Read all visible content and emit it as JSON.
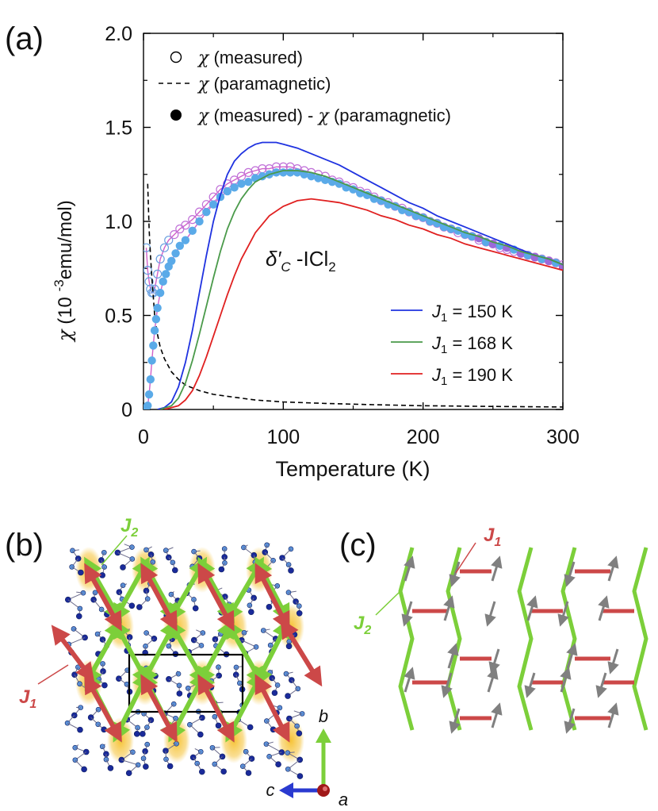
{
  "panel_a": {
    "label": "(a)",
    "annotation": {
      "symbol": "δ′",
      "sub": "C",
      "mid": " -ICl",
      "sub2": "2"
    },
    "legend_top": [
      {
        "marker": "open-circle",
        "sym": "χ",
        "text": " (measured)"
      },
      {
        "marker": "dashed-line",
        "sym": "χ",
        "text": " (paramagnetic)"
      },
      {
        "marker": "filled-circle",
        "sym": "χ",
        "text": " (measured) - ",
        "sym2": "χ",
        "text2": " (paramagnetic)"
      }
    ],
    "legend_models": [
      {
        "sym": "J",
        "sub": "1",
        "text": " = 150 K",
        "color": "#1f32e0"
      },
      {
        "sym": "J",
        "sub": "1",
        "text": " = 168 K",
        "color": "#4a9a4a"
      },
      {
        "sym": "J",
        "sub": "1",
        "text": " = 190 K",
        "color": "#e02020"
      }
    ],
    "ylabel_sym": "χ",
    "ylabel_text": " (10 ",
    "ylabel_sup": "-3",
    "ylabel_unit": "emu/mol)",
    "xlabel": "Temperature (K)"
  },
  "chart_data": {
    "type": "scatter",
    "xlim": [
      0,
      300
    ],
    "ylim": [
      0,
      2.0
    ],
    "xticks": [
      "0",
      "100",
      "200",
      "300"
    ],
    "yticks": [
      "0",
      "0.5",
      "1.0",
      "1.5",
      "2.0"
    ],
    "grid": false,
    "legend": "top-left",
    "series": [
      {
        "name": "χ (measured)",
        "style": "open-circle",
        "color": "#c060d0",
        "x": [
          2,
          3,
          4,
          5,
          6,
          7,
          8,
          10,
          12,
          15,
          18,
          22,
          26,
          30,
          35,
          40,
          45,
          50,
          55,
          60,
          65,
          70,
          75,
          80,
          85,
          90,
          95,
          100,
          105,
          110,
          115,
          120,
          125,
          130,
          135,
          140,
          145,
          150,
          155,
          160,
          165,
          170,
          175,
          180,
          185,
          190,
          195,
          200,
          205,
          210,
          215,
          220,
          225,
          230,
          235,
          240,
          245,
          250,
          255,
          260,
          265,
          270,
          275,
          280,
          285,
          290,
          295,
          300
        ],
        "y": [
          0.86,
          0.74,
          0.68,
          0.64,
          0.62,
          0.62,
          0.64,
          0.72,
          0.8,
          0.86,
          0.9,
          0.93,
          0.96,
          0.98,
          1.01,
          1.05,
          1.09,
          1.13,
          1.17,
          1.2,
          1.22,
          1.24,
          1.26,
          1.27,
          1.28,
          1.28,
          1.29,
          1.29,
          1.29,
          1.28,
          1.27,
          1.26,
          1.25,
          1.24,
          1.22,
          1.21,
          1.19,
          1.18,
          1.16,
          1.15,
          1.13,
          1.11,
          1.1,
          1.08,
          1.07,
          1.05,
          1.03,
          1.02,
          1.0,
          0.99,
          0.97,
          0.96,
          0.94,
          0.93,
          0.92,
          0.9,
          0.89,
          0.88,
          0.86,
          0.85,
          0.84,
          0.83,
          0.82,
          0.81,
          0.8,
          0.79,
          0.78,
          0.77
        ]
      },
      {
        "name": "χ (paramagnetic)",
        "style": "dashed-line",
        "color": "#000000",
        "x": [
          3,
          4,
          5,
          6,
          8,
          10,
          12,
          15,
          20,
          25,
          30,
          40,
          50,
          60,
          80,
          100,
          130,
          160,
          200,
          250,
          300
        ],
        "y": [
          1.2,
          0.96,
          0.82,
          0.7,
          0.5,
          0.4,
          0.33,
          0.27,
          0.2,
          0.16,
          0.13,
          0.1,
          0.08,
          0.07,
          0.05,
          0.04,
          0.032,
          0.026,
          0.02,
          0.016,
          0.013
        ]
      },
      {
        "name": "χ (measured) - χ (paramagnetic)",
        "style": "filled-circle",
        "color": "#5aaae8",
        "x": [
          2,
          3,
          4,
          5,
          6,
          7,
          8,
          9,
          10,
          12,
          14,
          16,
          18,
          20,
          23,
          26,
          30,
          35,
          40,
          45,
          50,
          55,
          60,
          65,
          70,
          75,
          80,
          85,
          90,
          95,
          100,
          105,
          110,
          115,
          120,
          125,
          130,
          135,
          140,
          145,
          150,
          155,
          160,
          165,
          170,
          175,
          180,
          185,
          190,
          195,
          200,
          205,
          210,
          215,
          220,
          225,
          230,
          235,
          240,
          245,
          250,
          255,
          260,
          265,
          270,
          275,
          280,
          285,
          290,
          295,
          300
        ],
        "y": [
          0.01,
          0.02,
          0.08,
          0.16,
          0.26,
          0.34,
          0.42,
          0.48,
          0.54,
          0.62,
          0.68,
          0.72,
          0.76,
          0.79,
          0.83,
          0.87,
          0.9,
          0.95,
          1.0,
          1.05,
          1.09,
          1.13,
          1.16,
          1.18,
          1.2,
          1.21,
          1.23,
          1.24,
          1.25,
          1.26,
          1.26,
          1.26,
          1.26,
          1.25,
          1.24,
          1.23,
          1.22,
          1.21,
          1.2,
          1.18,
          1.17,
          1.15,
          1.14,
          1.12,
          1.11,
          1.09,
          1.08,
          1.06,
          1.05,
          1.03,
          1.02,
          1.0,
          0.99,
          0.97,
          0.96,
          0.95,
          0.93,
          0.92,
          0.91,
          0.89,
          0.88,
          0.87,
          0.86,
          0.85,
          0.83,
          0.82,
          0.81,
          0.8,
          0.79,
          0.78,
          0.76
        ]
      },
      {
        "name": "J1 = 150 K",
        "style": "line",
        "color": "#1f32e0",
        "x": [
          10,
          15,
          20,
          25,
          30,
          35,
          40,
          45,
          50,
          55,
          60,
          65,
          70,
          75,
          80,
          85,
          90,
          95,
          100,
          110,
          120,
          130,
          140,
          150,
          160,
          170,
          180,
          190,
          200,
          210,
          220,
          230,
          240,
          250,
          260,
          270,
          280,
          290,
          300
        ],
        "y": [
          0.0,
          0.01,
          0.04,
          0.12,
          0.25,
          0.42,
          0.62,
          0.82,
          1.0,
          1.14,
          1.25,
          1.32,
          1.36,
          1.39,
          1.41,
          1.42,
          1.42,
          1.42,
          1.41,
          1.39,
          1.36,
          1.33,
          1.3,
          1.26,
          1.22,
          1.18,
          1.14,
          1.1,
          1.07,
          1.03,
          1.0,
          0.97,
          0.94,
          0.91,
          0.88,
          0.85,
          0.82,
          0.8,
          0.77
        ]
      },
      {
        "name": "J1 = 168 K",
        "style": "line",
        "color": "#4a9a4a",
        "x": [
          12,
          20,
          25,
          30,
          35,
          40,
          45,
          50,
          55,
          60,
          65,
          70,
          75,
          80,
          85,
          90,
          95,
          100,
          110,
          120,
          130,
          140,
          150,
          160,
          170,
          180,
          190,
          200,
          210,
          220,
          230,
          240,
          250,
          260,
          270,
          280,
          290,
          300
        ],
        "y": [
          0.0,
          0.02,
          0.06,
          0.14,
          0.26,
          0.4,
          0.55,
          0.7,
          0.84,
          0.96,
          1.05,
          1.12,
          1.17,
          1.21,
          1.23,
          1.25,
          1.26,
          1.27,
          1.27,
          1.26,
          1.24,
          1.21,
          1.18,
          1.15,
          1.12,
          1.09,
          1.06,
          1.03,
          1.0,
          0.97,
          0.94,
          0.92,
          0.89,
          0.87,
          0.84,
          0.82,
          0.8,
          0.77
        ]
      },
      {
        "name": "J1 = 190 K",
        "style": "line",
        "color": "#e02020",
        "x": [
          15,
          25,
          30,
          35,
          40,
          45,
          50,
          55,
          60,
          65,
          70,
          75,
          80,
          90,
          100,
          110,
          120,
          130,
          140,
          150,
          160,
          170,
          180,
          190,
          200,
          210,
          220,
          230,
          240,
          250,
          260,
          270,
          280,
          290,
          300
        ],
        "y": [
          0.0,
          0.02,
          0.05,
          0.1,
          0.18,
          0.28,
          0.39,
          0.5,
          0.61,
          0.71,
          0.8,
          0.87,
          0.94,
          1.03,
          1.08,
          1.11,
          1.12,
          1.11,
          1.1,
          1.08,
          1.06,
          1.03,
          1.01,
          0.98,
          0.96,
          0.93,
          0.91,
          0.88,
          0.86,
          0.84,
          0.82,
          0.8,
          0.78,
          0.76,
          0.74
        ]
      }
    ]
  },
  "panel_b": {
    "label": "(b)",
    "j1": {
      "sym": "J",
      "sub": "1"
    },
    "j2": {
      "sym": "J",
      "sub": "2"
    },
    "axes": {
      "b": "b",
      "c": "c",
      "a": "a"
    },
    "colors": {
      "j1": "#cc4040",
      "j2": "#7ccf3a",
      "molecule": "#1a2a9a",
      "halo": "#f0c030"
    }
  },
  "panel_c": {
    "label": "(c)",
    "j1": {
      "sym": "J",
      "sub": "1"
    },
    "j2": {
      "sym": "J",
      "sub": "2"
    },
    "colors": {
      "j1": "#cc4040",
      "j2": "#7ccf3a",
      "spin": "#808080"
    }
  }
}
